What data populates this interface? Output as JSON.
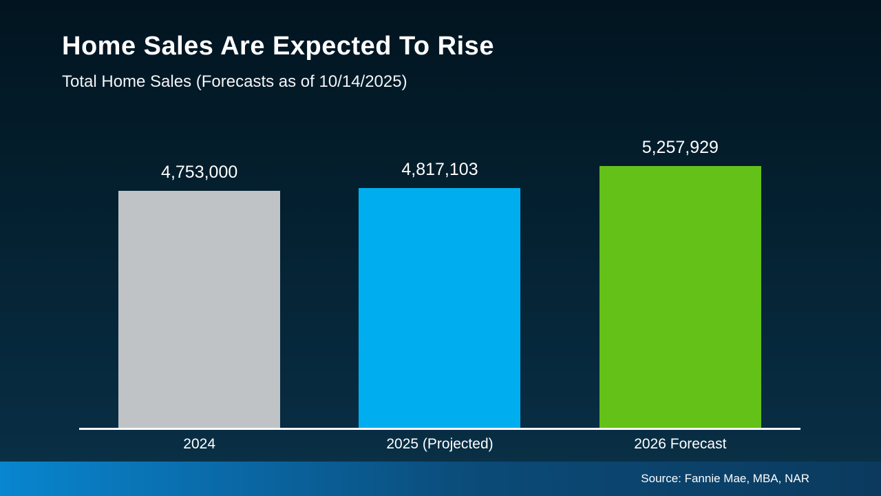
{
  "slide": {
    "title": "Home Sales Are Expected To Rise",
    "subtitle": "Total Home Sales (Forecasts as of 10/14/2025)",
    "source": "Source: Fannie Mae, MBA, NAR"
  },
  "chart_data": {
    "type": "bar",
    "title": "Home Sales Are Expected To Rise",
    "subtitle": "Total Home Sales (Forecasts as of 10/14/2025)",
    "categories": [
      "2024",
      "2025 (Projected)",
      "2026 Forecast"
    ],
    "values": [
      4753000,
      4817103,
      5257929
    ],
    "value_labels": [
      "4,753,000",
      "4,817,103",
      "5,257,929"
    ],
    "bar_colors": [
      "#bfc3c5",
      "#00aeef",
      "#63c118"
    ],
    "xlabel": "",
    "ylabel": "",
    "ylim": [
      0,
      5400000
    ],
    "grid": false,
    "legend": "none",
    "baseline_color": "#ffffff",
    "source": "Source: Fannie Mae, MBA, NAR"
  },
  "colors": {
    "background_top": "#021420",
    "background_bottom": "#0b3349",
    "footer_left": "#0886cf",
    "footer_right": "#0b3a5e",
    "text": "#ffffff"
  }
}
